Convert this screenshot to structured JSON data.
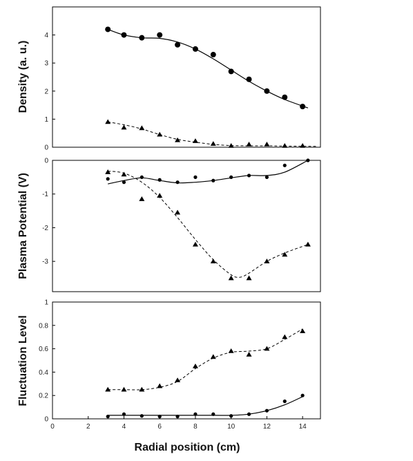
{
  "chart_data": [
    {
      "type": "scatter",
      "ylabel": "Density (a. u.)",
      "xlabel": "",
      "xlim": [
        0,
        15
      ],
      "ylim": [
        0,
        5
      ],
      "yticks": [
        "0",
        "1",
        "2",
        "3",
        "4"
      ],
      "series": [
        {
          "marker": "circle",
          "line": "solid",
          "points": [
            [
              3.1,
              4.2
            ],
            [
              4,
              4.0
            ],
            [
              5,
              3.9
            ],
            [
              6,
              4.0
            ],
            [
              7,
              3.65
            ],
            [
              8,
              3.5
            ],
            [
              9,
              3.3
            ],
            [
              10,
              2.7
            ],
            [
              11,
              2.42
            ],
            [
              12,
              2.0
            ],
            [
              13,
              1.78
            ],
            [
              14,
              1.45
            ]
          ],
          "curve": [
            [
              3.1,
              4.2
            ],
            [
              4,
              4.0
            ],
            [
              5,
              3.9
            ],
            [
              6,
              3.88
            ],
            [
              7,
              3.75
            ],
            [
              8,
              3.5
            ],
            [
              9,
              3.15
            ],
            [
              10,
              2.75
            ],
            [
              11,
              2.35
            ],
            [
              12,
              2.0
            ],
            [
              13,
              1.7
            ],
            [
              14.3,
              1.4
            ]
          ]
        },
        {
          "marker": "triangle",
          "line": "dashed",
          "points": [
            [
              3.1,
              0.9
            ],
            [
              4,
              0.7
            ],
            [
              5,
              0.68
            ],
            [
              6,
              0.45
            ],
            [
              7,
              0.25
            ],
            [
              8,
              0.22
            ],
            [
              9,
              0.12
            ],
            [
              10,
              0.05
            ],
            [
              11,
              0.1
            ],
            [
              12,
              0.1
            ],
            [
              13,
              0.05
            ],
            [
              14,
              0.05
            ]
          ],
          "curve": [
            [
              3.1,
              0.9
            ],
            [
              4,
              0.8
            ],
            [
              5,
              0.65
            ],
            [
              6,
              0.45
            ],
            [
              7,
              0.28
            ],
            [
              8,
              0.18
            ],
            [
              9,
              0.1
            ],
            [
              10,
              0.06
            ],
            [
              11,
              0.05
            ],
            [
              12,
              0.05
            ],
            [
              13,
              0.04
            ],
            [
              14.8,
              0.03
            ]
          ]
        }
      ]
    },
    {
      "type": "scatter",
      "ylabel": "Plasma Potential (V)",
      "xlabel": "",
      "xlim": [
        0,
        15
      ],
      "ylim": [
        -3.9,
        0
      ],
      "yticks": [
        "0",
        "-1",
        "-2",
        "-3"
      ],
      "series": [
        {
          "marker": "circle",
          "line": "solid",
          "points": [
            [
              3.1,
              -0.55
            ],
            [
              4,
              -0.65
            ],
            [
              5,
              -0.5
            ],
            [
              6,
              -0.58
            ],
            [
              7,
              -0.65
            ],
            [
              8,
              -0.5
            ],
            [
              9,
              -0.6
            ],
            [
              10,
              -0.5
            ],
            [
              11,
              -0.45
            ],
            [
              12,
              -0.5
            ],
            [
              13,
              -0.15
            ],
            [
              14.3,
              0
            ]
          ],
          "curve": [
            [
              3.1,
              -0.7
            ],
            [
              4,
              -0.6
            ],
            [
              5,
              -0.52
            ],
            [
              6,
              -0.6
            ],
            [
              7,
              -0.67
            ],
            [
              8,
              -0.65
            ],
            [
              9,
              -0.6
            ],
            [
              10,
              -0.52
            ],
            [
              11,
              -0.45
            ],
            [
              12,
              -0.45
            ],
            [
              13,
              -0.35
            ],
            [
              14.3,
              0
            ]
          ]
        },
        {
          "marker": "triangle",
          "line": "dashed",
          "points": [
            [
              3.1,
              -0.35
            ],
            [
              4,
              -0.42
            ],
            [
              5,
              -1.15
            ],
            [
              6,
              -1.05
            ],
            [
              7,
              -1.55
            ],
            [
              8,
              -2.5
            ],
            [
              9,
              -3.0
            ],
            [
              10,
              -3.5
            ],
            [
              11,
              -3.5
            ],
            [
              12,
              -3.0
            ],
            [
              13,
              -2.8
            ],
            [
              14.3,
              -2.5
            ]
          ],
          "curve": [
            [
              3.1,
              -0.32
            ],
            [
              4,
              -0.38
            ],
            [
              5,
              -0.65
            ],
            [
              6,
              -1.1
            ],
            [
              7,
              -1.7
            ],
            [
              8,
              -2.35
            ],
            [
              9,
              -2.95
            ],
            [
              10,
              -3.4
            ],
            [
              10.5,
              -3.47
            ],
            [
              11,
              -3.35
            ],
            [
              12,
              -3.0
            ],
            [
              13,
              -2.75
            ],
            [
              14.3,
              -2.5
            ]
          ]
        }
      ]
    },
    {
      "type": "scatter",
      "ylabel": "Fluctuation Level",
      "xlabel": "Radial position  (cm)",
      "xlim": [
        0,
        15
      ],
      "ylim": [
        0,
        1
      ],
      "yticks": [
        "0",
        "0.2",
        "0.4",
        "0.6",
        "0.8",
        "1"
      ],
      "xticks": [
        "0",
        "2",
        "4",
        "6",
        "8",
        "10",
        "12",
        "14"
      ],
      "series": [
        {
          "marker": "circle",
          "line": "solid",
          "points": [
            [
              3.1,
              0.02
            ],
            [
              4,
              0.04
            ],
            [
              5,
              0.025
            ],
            [
              6,
              0.02
            ],
            [
              7,
              0.02
            ],
            [
              8,
              0.04
            ],
            [
              9,
              0.04
            ],
            [
              10,
              0.025
            ],
            [
              11,
              0.04
            ],
            [
              12,
              0.07
            ],
            [
              13,
              0.15
            ],
            [
              14,
              0.2
            ]
          ],
          "curve": [
            [
              3.1,
              0.03
            ],
            [
              5,
              0.03
            ],
            [
              7,
              0.03
            ],
            [
              9,
              0.03
            ],
            [
              10,
              0.03
            ],
            [
              11,
              0.04
            ],
            [
              12,
              0.07
            ],
            [
              13,
              0.12
            ],
            [
              14,
              0.19
            ]
          ]
        },
        {
          "marker": "triangle",
          "line": "dashed",
          "points": [
            [
              3.1,
              0.25
            ],
            [
              4,
              0.25
            ],
            [
              5,
              0.25
            ],
            [
              6,
              0.28
            ],
            [
              7,
              0.33
            ],
            [
              8,
              0.45
            ],
            [
              9,
              0.53
            ],
            [
              10,
              0.58
            ],
            [
              11,
              0.55
            ],
            [
              12,
              0.6
            ],
            [
              13,
              0.7
            ],
            [
              14,
              0.75
            ]
          ],
          "curve": [
            [
              3.1,
              0.25
            ],
            [
              4,
              0.25
            ],
            [
              5,
              0.25
            ],
            [
              6,
              0.27
            ],
            [
              7,
              0.32
            ],
            [
              8,
              0.43
            ],
            [
              9,
              0.52
            ],
            [
              10,
              0.57
            ],
            [
              11,
              0.58
            ],
            [
              12,
              0.6
            ],
            [
              13,
              0.68
            ],
            [
              14,
              0.77
            ]
          ]
        }
      ]
    }
  ]
}
